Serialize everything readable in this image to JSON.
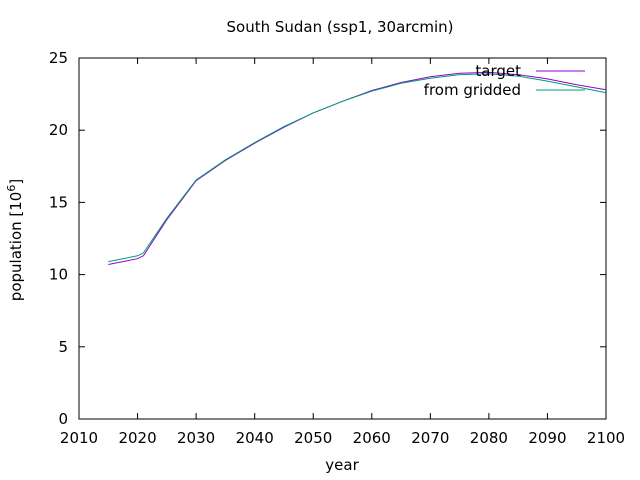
{
  "chart_data": {
    "type": "line",
    "title": "South Sudan (ssp1, 30arcmin)",
    "xlabel": "year",
    "ylabel": "population [10",
    "ylabel_sup": "6",
    "ylabel_close": "]",
    "xlim": [
      2010,
      2100
    ],
    "ylim": [
      0,
      25
    ],
    "xticks": [
      2010,
      2020,
      2030,
      2040,
      2050,
      2060,
      2070,
      2080,
      2090,
      2100
    ],
    "yticks": [
      0,
      5,
      10,
      15,
      20,
      25
    ],
    "grid": false,
    "legend_position": "top-right",
    "series": [
      {
        "name": "target",
        "color": "#9400d3",
        "x": [
          2015,
          2020,
          2021,
          2025,
          2030,
          2035,
          2040,
          2045,
          2050,
          2055,
          2060,
          2065,
          2070,
          2075,
          2080,
          2085,
          2090,
          2095,
          2100
        ],
        "y": [
          10.7,
          11.1,
          11.3,
          13.8,
          16.5,
          17.9,
          19.1,
          20.2,
          21.2,
          22.0,
          22.75,
          23.3,
          23.7,
          23.95,
          24.0,
          23.85,
          23.55,
          23.15,
          22.8
        ]
      },
      {
        "name": "from gridded",
        "color": "#009e73",
        "x": [
          2015,
          2020,
          2021,
          2025,
          2030,
          2035,
          2040,
          2045,
          2050,
          2055,
          2060,
          2065,
          2070,
          2075,
          2080,
          2085,
          2090,
          2095,
          2100
        ],
        "y": [
          10.9,
          11.3,
          11.5,
          13.9,
          16.55,
          17.95,
          19.15,
          20.25,
          21.2,
          22.0,
          22.7,
          23.25,
          23.6,
          23.85,
          23.9,
          23.75,
          23.4,
          23.0,
          22.6
        ]
      }
    ]
  }
}
